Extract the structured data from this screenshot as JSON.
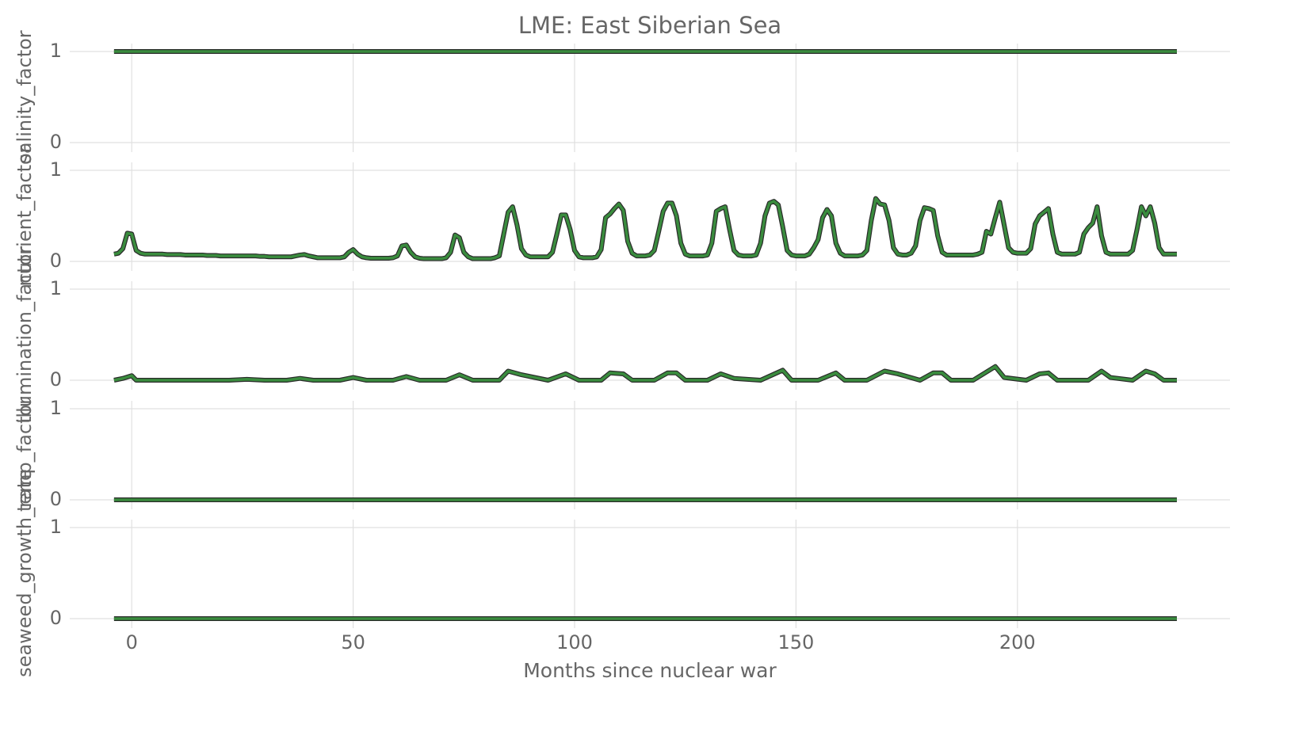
{
  "chart_data": [
    {
      "type": "line",
      "title": "LME: East Siberian Sea",
      "ylabel": "salinity_factor",
      "color": "#3a8c3e",
      "grid": true,
      "xlim": [
        -14,
        248
      ],
      "xticks": [
        0,
        50,
        100,
        150,
        200
      ],
      "ylim": [
        0,
        1
      ],
      "yticks": [
        0,
        1
      ],
      "x": [
        -4,
        236
      ],
      "values": [
        1,
        1
      ]
    },
    {
      "type": "line",
      "ylabel": "nutrient_factor",
      "color": "#3a8c3e",
      "grid": true,
      "xlim": [
        -14,
        248
      ],
      "xticks": [
        0,
        50,
        100,
        150,
        200
      ],
      "ylim": [
        0,
        1
      ],
      "yticks": [
        0,
        1
      ],
      "x": [
        -4,
        -3,
        -2,
        -1,
        0,
        1,
        2,
        3,
        4,
        5,
        6,
        7,
        8,
        9,
        10,
        11,
        12,
        13,
        14,
        15,
        16,
        17,
        18,
        19,
        20,
        21,
        22,
        23,
        24,
        25,
        26,
        27,
        28,
        29,
        30,
        31,
        32,
        33,
        34,
        35,
        36,
        37,
        38,
        39,
        40,
        41,
        42,
        43,
        44,
        45,
        46,
        47,
        48,
        49,
        50,
        51,
        52,
        53,
        54,
        55,
        56,
        57,
        58,
        59,
        60,
        61,
        62,
        63,
        64,
        65,
        66,
        67,
        68,
        69,
        70,
        71,
        72,
        73,
        74,
        75,
        76,
        77,
        78,
        79,
        80,
        81,
        82,
        83,
        84,
        85,
        86,
        87,
        88,
        89,
        90,
        91,
        92,
        93,
        94,
        95,
        96,
        97,
        98,
        99,
        100,
        101,
        102,
        103,
        104,
        105,
        106,
        107,
        108,
        109,
        110,
        111,
        112,
        113,
        114,
        115,
        116,
        117,
        118,
        119,
        120,
        121,
        122,
        123,
        124,
        125,
        126,
        127,
        128,
        129,
        130,
        131,
        132,
        133,
        134,
        135,
        136,
        137,
        138,
        139,
        140,
        141,
        142,
        143,
        144,
        145,
        146,
        147,
        148,
        149,
        150,
        151,
        152,
        153,
        154,
        155,
        156,
        157,
        158,
        159,
        160,
        161,
        162,
        163,
        164,
        165,
        166,
        167,
        168,
        169,
        170,
        171,
        172,
        173,
        174,
        175,
        176,
        177,
        178,
        179,
        180,
        181,
        182,
        183,
        184,
        185,
        186,
        187,
        188,
        189,
        190,
        191,
        192,
        193,
        194,
        195,
        196,
        197,
        198,
        199,
        200,
        201,
        202,
        203,
        204,
        205,
        206,
        207,
        208,
        209,
        210,
        211,
        212,
        213,
        214,
        215,
        216,
        217,
        218,
        219,
        220,
        221,
        222,
        223,
        224,
        225,
        226,
        227,
        228,
        229,
        230,
        231,
        232,
        233,
        234,
        235,
        236
      ],
      "values": [
        0.08,
        0.09,
        0.14,
        0.31,
        0.3,
        0.12,
        0.09,
        0.08,
        0.08,
        0.08,
        0.08,
        0.08,
        0.075,
        0.075,
        0.075,
        0.075,
        0.07,
        0.07,
        0.07,
        0.07,
        0.07,
        0.065,
        0.065,
        0.065,
        0.06,
        0.06,
        0.06,
        0.06,
        0.06,
        0.06,
        0.06,
        0.06,
        0.06,
        0.055,
        0.055,
        0.05,
        0.05,
        0.05,
        0.05,
        0.05,
        0.05,
        0.06,
        0.07,
        0.075,
        0.06,
        0.05,
        0.04,
        0.04,
        0.04,
        0.04,
        0.04,
        0.04,
        0.05,
        0.1,
        0.13,
        0.08,
        0.05,
        0.04,
        0.035,
        0.035,
        0.035,
        0.035,
        0.035,
        0.04,
        0.06,
        0.17,
        0.18,
        0.1,
        0.05,
        0.035,
        0.03,
        0.03,
        0.03,
        0.03,
        0.03,
        0.04,
        0.1,
        0.29,
        0.26,
        0.1,
        0.05,
        0.03,
        0.03,
        0.03,
        0.03,
        0.03,
        0.04,
        0.06,
        0.3,
        0.54,
        0.6,
        0.4,
        0.14,
        0.07,
        0.05,
        0.05,
        0.05,
        0.05,
        0.05,
        0.1,
        0.3,
        0.51,
        0.51,
        0.35,
        0.12,
        0.05,
        0.04,
        0.04,
        0.04,
        0.05,
        0.13,
        0.48,
        0.52,
        0.58,
        0.63,
        0.56,
        0.22,
        0.09,
        0.06,
        0.06,
        0.06,
        0.07,
        0.12,
        0.33,
        0.55,
        0.64,
        0.64,
        0.5,
        0.2,
        0.08,
        0.06,
        0.06,
        0.06,
        0.06,
        0.07,
        0.2,
        0.55,
        0.58,
        0.6,
        0.35,
        0.12,
        0.07,
        0.06,
        0.06,
        0.06,
        0.07,
        0.2,
        0.5,
        0.64,
        0.66,
        0.62,
        0.38,
        0.12,
        0.07,
        0.06,
        0.06,
        0.06,
        0.08,
        0.15,
        0.24,
        0.48,
        0.57,
        0.5,
        0.2,
        0.09,
        0.06,
        0.06,
        0.06,
        0.06,
        0.07,
        0.12,
        0.45,
        0.69,
        0.63,
        0.62,
        0.45,
        0.15,
        0.08,
        0.07,
        0.07,
        0.09,
        0.17,
        0.45,
        0.59,
        0.58,
        0.56,
        0.28,
        0.1,
        0.07,
        0.07,
        0.07,
        0.07,
        0.07,
        0.07,
        0.07,
        0.08,
        0.1,
        0.33,
        0.3,
        0.48,
        0.65,
        0.4,
        0.15,
        0.1,
        0.09,
        0.09,
        0.09,
        0.14,
        0.41,
        0.5,
        0.54,
        0.58,
        0.3,
        0.1,
        0.08,
        0.08,
        0.08,
        0.08,
        0.1,
        0.3,
        0.37,
        0.42,
        0.6,
        0.28,
        0.1,
        0.08,
        0.08,
        0.08,
        0.08,
        0.08,
        0.12,
        0.35,
        0.6,
        0.5,
        0.6,
        0.42,
        0.15,
        0.08,
        0.08,
        0.08,
        0.08
      ]
    },
    {
      "type": "line",
      "ylabel": "illumination_factor",
      "color": "#3a8c3e",
      "grid": true,
      "xlim": [
        -14,
        248
      ],
      "xticks": [
        0,
        50,
        100,
        150,
        200
      ],
      "ylim": [
        0,
        1
      ],
      "yticks": [
        0,
        1
      ],
      "x": [
        -4,
        -2,
        0,
        1,
        22,
        26,
        30,
        35,
        38,
        41,
        47,
        50,
        53,
        59,
        62,
        65,
        71,
        74,
        77,
        83,
        85,
        88,
        94,
        98,
        101,
        106,
        108,
        111,
        113,
        118,
        121,
        123,
        125,
        130,
        133,
        136,
        142,
        147,
        149,
        155,
        159,
        161,
        166,
        170,
        173,
        178,
        181,
        183,
        185,
        190,
        195,
        197,
        202,
        205,
        207,
        209,
        216,
        219,
        221,
        226,
        229,
        231,
        233,
        236
      ],
      "values": [
        0,
        0.02,
        0.05,
        0,
        0,
        0.01,
        0,
        0,
        0.02,
        0,
        0,
        0.03,
        0,
        0,
        0.04,
        0,
        0,
        0.06,
        0,
        0,
        0.1,
        0.06,
        0,
        0.07,
        0,
        0,
        0.08,
        0.07,
        0,
        0,
        0.08,
        0.08,
        0,
        0,
        0.07,
        0.02,
        0,
        0.11,
        0,
        0,
        0.08,
        0,
        0,
        0.1,
        0.07,
        0,
        0.08,
        0.08,
        0,
        0,
        0.15,
        0.03,
        0,
        0.07,
        0.08,
        0,
        0,
        0.1,
        0.03,
        0,
        0.1,
        0.07,
        0,
        0
      ]
    },
    {
      "type": "line",
      "ylabel": "temp_factor",
      "color": "#3a8c3e",
      "grid": true,
      "xlim": [
        -14,
        248
      ],
      "xticks": [
        0,
        50,
        100,
        150,
        200
      ],
      "ylim": [
        0,
        1
      ],
      "yticks": [
        0,
        1
      ],
      "x": [
        -4,
        236
      ],
      "values": [
        0,
        0
      ]
    },
    {
      "type": "line",
      "ylabel": "seaweed_growth_rate",
      "xlabel": "Months since nuclear war",
      "color": "#3a8c3e",
      "grid": true,
      "xlim": [
        -14,
        248
      ],
      "xticks": [
        0,
        50,
        100,
        150,
        200
      ],
      "ylim": [
        0,
        1
      ],
      "yticks": [
        0,
        1
      ],
      "x": [
        -4,
        236
      ],
      "values": [
        0,
        0
      ]
    }
  ]
}
